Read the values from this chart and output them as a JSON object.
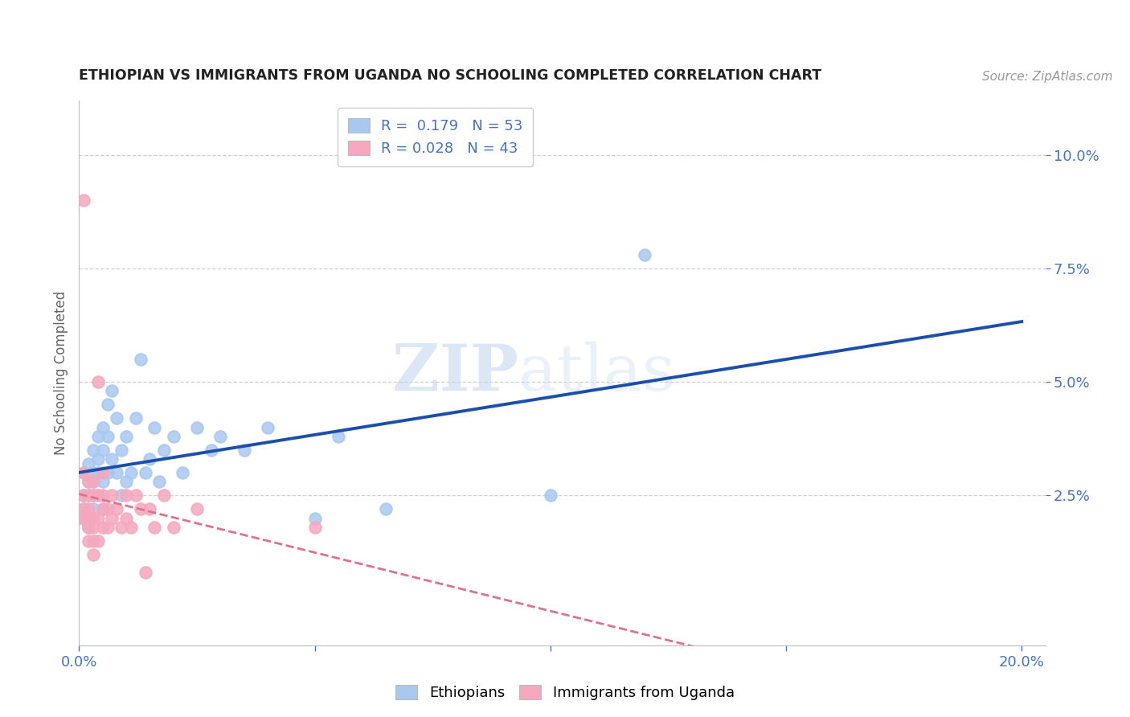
{
  "title": "ETHIOPIAN VS IMMIGRANTS FROM UGANDA NO SCHOOLING COMPLETED CORRELATION CHART",
  "source": "Source: ZipAtlas.com",
  "ylabel_label": "No Schooling Completed",
  "xlim": [
    0.0,
    0.205
  ],
  "ylim": [
    -0.008,
    0.112
  ],
  "ytick_positions": [
    0.025,
    0.05,
    0.075,
    0.1
  ],
  "ytick_labels": [
    "2.5%",
    "5.0%",
    "7.5%",
    "10.0%"
  ],
  "xtick_positions": [
    0.0,
    0.05,
    0.1,
    0.15,
    0.2
  ],
  "xtick_labels": [
    "0.0%",
    "",
    "",
    "",
    "20.0%"
  ],
  "R_ethiopians": 0.179,
  "N_ethiopians": 53,
  "R_uganda": 0.028,
  "N_uganda": 43,
  "ethiopians_color": "#a8c8f0",
  "uganda_color": "#f5a8be",
  "trend_blue": "#1a4faf",
  "trend_pink": "#e07090",
  "watermark_zip": "ZIP",
  "watermark_atlas": "atlas",
  "grid_color": "#cccccc",
  "background_color": "#ffffff",
  "title_color": "#222222",
  "tick_color": "#4472c4",
  "ethiopians_x": [
    0.001,
    0.001,
    0.001,
    0.001,
    0.002,
    0.002,
    0.002,
    0.002,
    0.002,
    0.003,
    0.003,
    0.003,
    0.003,
    0.003,
    0.004,
    0.004,
    0.004,
    0.004,
    0.005,
    0.005,
    0.005,
    0.005,
    0.006,
    0.006,
    0.006,
    0.007,
    0.007,
    0.008,
    0.008,
    0.009,
    0.009,
    0.01,
    0.01,
    0.011,
    0.012,
    0.013,
    0.014,
    0.015,
    0.016,
    0.017,
    0.018,
    0.02,
    0.022,
    0.025,
    0.028,
    0.03,
    0.035,
    0.04,
    0.05,
    0.055,
    0.065,
    0.1,
    0.12
  ],
  "ethiopians_y": [
    0.02,
    0.025,
    0.022,
    0.03,
    0.018,
    0.025,
    0.028,
    0.032,
    0.02,
    0.025,
    0.03,
    0.022,
    0.035,
    0.028,
    0.033,
    0.025,
    0.03,
    0.038,
    0.028,
    0.035,
    0.04,
    0.022,
    0.03,
    0.038,
    0.045,
    0.033,
    0.048,
    0.03,
    0.042,
    0.025,
    0.035,
    0.028,
    0.038,
    0.03,
    0.042,
    0.055,
    0.03,
    0.033,
    0.04,
    0.028,
    0.035,
    0.038,
    0.03,
    0.04,
    0.035,
    0.038,
    0.035,
    0.04,
    0.02,
    0.038,
    0.022,
    0.025,
    0.078
  ],
  "uganda_x": [
    0.001,
    0.001,
    0.001,
    0.001,
    0.001,
    0.002,
    0.002,
    0.002,
    0.002,
    0.002,
    0.002,
    0.003,
    0.003,
    0.003,
    0.003,
    0.003,
    0.003,
    0.004,
    0.004,
    0.004,
    0.004,
    0.005,
    0.005,
    0.005,
    0.005,
    0.006,
    0.006,
    0.007,
    0.007,
    0.008,
    0.009,
    0.01,
    0.01,
    0.011,
    0.012,
    0.013,
    0.014,
    0.015,
    0.016,
    0.018,
    0.02,
    0.025,
    0.05
  ],
  "uganda_y": [
    0.02,
    0.025,
    0.03,
    0.022,
    0.09,
    0.015,
    0.02,
    0.025,
    0.018,
    0.028,
    0.022,
    0.015,
    0.02,
    0.025,
    0.012,
    0.028,
    0.018,
    0.02,
    0.025,
    0.015,
    0.05,
    0.022,
    0.018,
    0.025,
    0.03,
    0.022,
    0.018,
    0.025,
    0.02,
    0.022,
    0.018,
    0.025,
    0.02,
    0.018,
    0.025,
    0.022,
    0.008,
    0.022,
    0.018,
    0.025,
    0.018,
    0.022,
    0.018
  ]
}
